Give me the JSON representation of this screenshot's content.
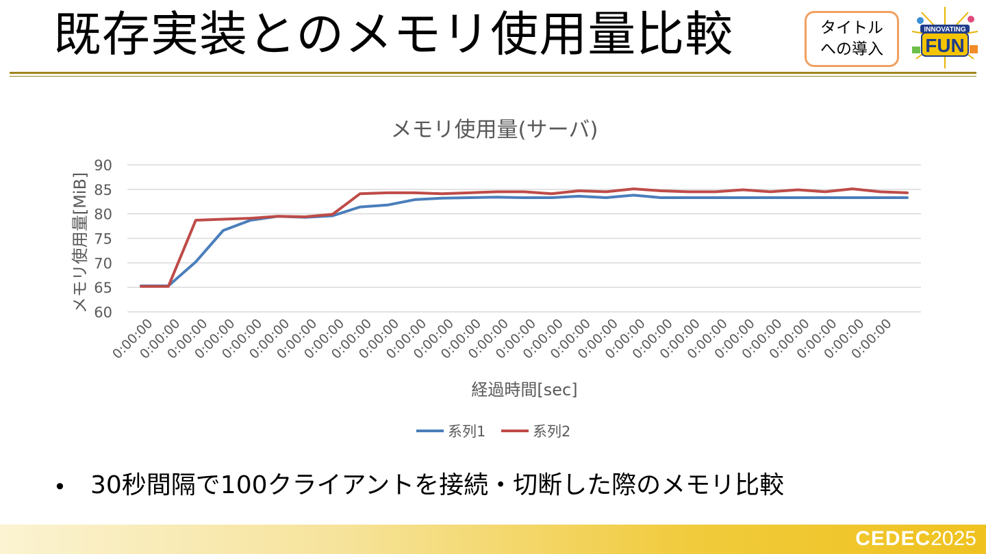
{
  "slide": {
    "title": "既存実装とのメモリ使用量比較",
    "tag_line1": "タイトル",
    "tag_line2": "への導入",
    "bullet": "30秒間隔で100クライアントを接続・切断した際のメモリ比較",
    "footer_brand": "CEDEC",
    "footer_year": "2025",
    "event_logo_text_top": "INNOVATING",
    "event_logo_text_main": "FUN"
  },
  "colors": {
    "series1": "#4a7ebb",
    "series2": "#be4b48",
    "accent_rule": "#a0861c",
    "tag_border": "#f0a060"
  },
  "chart_data": {
    "type": "line",
    "title": "メモリ使用量(サーバ)",
    "xlabel": "経過時間[sec]",
    "ylabel": "メモリ使用量[MiB]",
    "ylim": [
      60,
      90
    ],
    "yticks": [
      90,
      85,
      80,
      75,
      70,
      65,
      60
    ],
    "grid": true,
    "legend_position": "bottom",
    "categories": [
      "0:00:00",
      "0:00:00",
      "0:00:00",
      "0:00:00",
      "0:00:00",
      "0:00:00",
      "0:00:00",
      "0:00:00",
      "0:00:00",
      "0:00:00",
      "0:00:00",
      "0:00:00",
      "0:00:00",
      "0:00:00",
      "0:00:00",
      "0:00:00",
      "0:00:00",
      "0:00:00",
      "0:00:00",
      "0:00:00",
      "0:00:00",
      "0:00:00",
      "0:00:00",
      "0:00:00",
      "0:00:00",
      "0:00:00",
      "0:00:00",
      "0:00:00",
      "0:00:00"
    ],
    "series": [
      {
        "name": "系列1",
        "values": [
          65.3,
          65.3,
          70.2,
          76.6,
          78.7,
          79.5,
          79.3,
          79.6,
          81.4,
          81.8,
          82.9,
          83.2,
          83.3,
          83.4,
          83.3,
          83.3,
          83.6,
          83.3,
          83.8,
          83.3,
          83.3,
          83.3,
          83.3,
          83.3,
          83.3,
          83.3,
          83.3,
          83.3,
          83.3
        ]
      },
      {
        "name": "系列2",
        "values": [
          65.2,
          65.2,
          78.7,
          78.9,
          79.1,
          79.5,
          79.4,
          79.9,
          84.1,
          84.3,
          84.3,
          84.1,
          84.3,
          84.5,
          84.5,
          84.1,
          84.7,
          84.5,
          85.1,
          84.7,
          84.5,
          84.5,
          84.9,
          84.5,
          84.9,
          84.5,
          85.1,
          84.5,
          84.3
        ]
      }
    ]
  }
}
